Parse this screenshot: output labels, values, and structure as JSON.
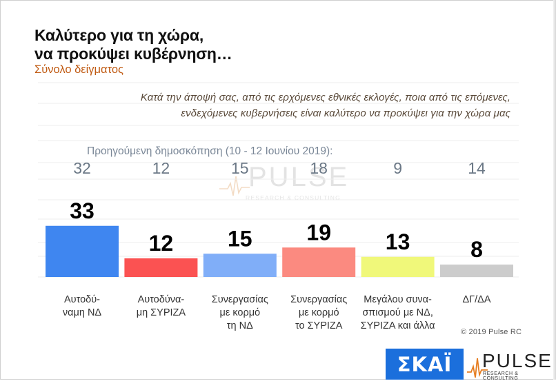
{
  "title_line1": "Καλύτερο για τη χώρα,",
  "title_line2": "να προκύψει κυβέρνηση…",
  "subtitle": "Σύνολο δείγματος",
  "question_line1": "Κατά την άποψή σας, από τις ερχόμενες εθνικές εκλογές, ποια από τις επόμενες,",
  "question_line2": "ενδεχόμενες κυβερνήσεις είναι καλύτερο να προκύψει για την χώρα μας",
  "previous_label": "Προηγούμενη δημοσκόπηση (10 - 12 Ιουνίου 2019):",
  "watermark": {
    "word": "PULSE",
    "sub": "RESEARCH & CONSULTING"
  },
  "copyright": "© 2019 Pulse RC",
  "logos": {
    "skai": "ΣΚΑΪ",
    "pulse": "PULSE",
    "pulse_sub": "RESEARCH & CONSULTING"
  },
  "chart_data": {
    "type": "bar",
    "title": "Καλύτερο για τη χώρα, να προκύψει κυβέρνηση…",
    "categories": [
      [
        "Αυτοδύ-",
        "ναμη ΝΔ"
      ],
      [
        "Αυτοδύνα-",
        "μη ΣΥΡΙΖΑ"
      ],
      [
        "Συνεργασίας",
        "με κορμό",
        "τη ΝΔ"
      ],
      [
        "Συνεργασίας",
        "με κορμό",
        "το ΣΥΡΙΖΑ"
      ],
      [
        "Μεγάλου συνα-",
        "σπισμού με ΝΔ,",
        "ΣΥΡΙΖΑ και άλλα"
      ],
      [
        "ΔΓ/ΔΑ"
      ]
    ],
    "values": [
      33,
      12,
      15,
      19,
      13,
      8
    ],
    "previous_values": [
      32,
      12,
      15,
      18,
      9,
      14
    ],
    "colors": [
      "#3f86f0",
      "#fb5252",
      "#80aef8",
      "#fb8a80",
      "#f0f87a",
      "#cccccc"
    ],
    "ylim": [
      0,
      40
    ],
    "grid": true,
    "legend": "none"
  }
}
